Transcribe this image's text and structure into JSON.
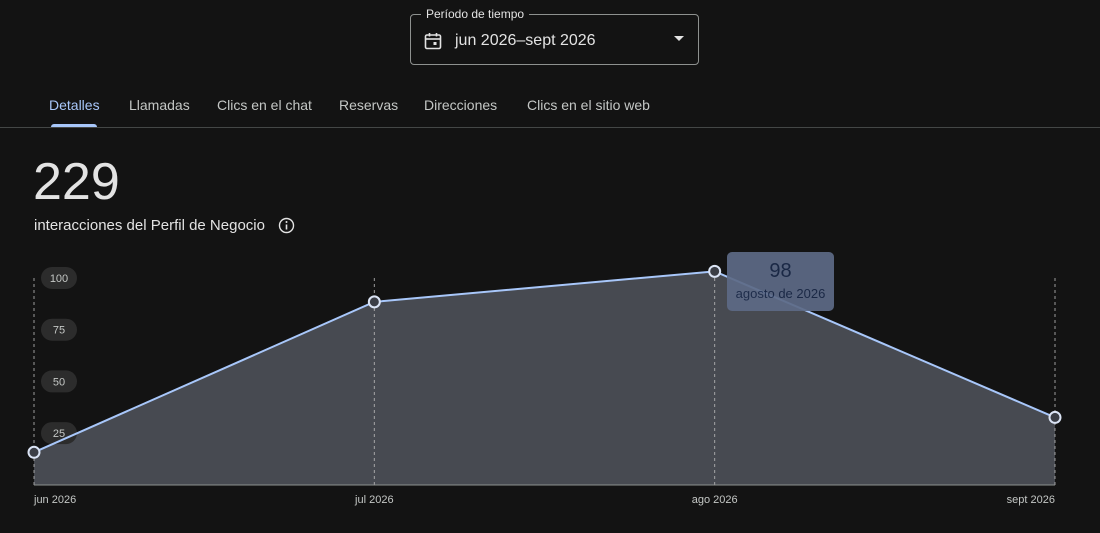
{
  "period": {
    "legend": "Período de tiempo",
    "value": "jun 2026–sept 2026"
  },
  "tabs": [
    {
      "label": "Detalles",
      "active": true
    },
    {
      "label": "Llamadas",
      "active": false
    },
    {
      "label": "Clics en el chat",
      "active": false
    },
    {
      "label": "Reservas",
      "active": false
    },
    {
      "label": "Direcciones",
      "active": false
    },
    {
      "label": "Clics en el sitio web",
      "active": false
    }
  ],
  "summary": {
    "total": "229",
    "label": "interacciones del Perfil de Negocio"
  },
  "tooltip": {
    "value": "98",
    "date": "agosto de 2026"
  },
  "colors": {
    "accent": "#a8c7fa",
    "area_fill": "#474a51",
    "tooltip_bg": "#5d6a86"
  },
  "chart_data": {
    "type": "area",
    "categories": [
      "jun 2026",
      "jul 2026",
      "ago 2026",
      "sept 2026"
    ],
    "values": [
      15,
      84,
      98,
      31
    ],
    "yticks": [
      25,
      50,
      75,
      100
    ],
    "ylim": [
      0,
      100
    ],
    "grid": "vertical dashed lines at each category",
    "highlighted_point": "ago 2026"
  }
}
